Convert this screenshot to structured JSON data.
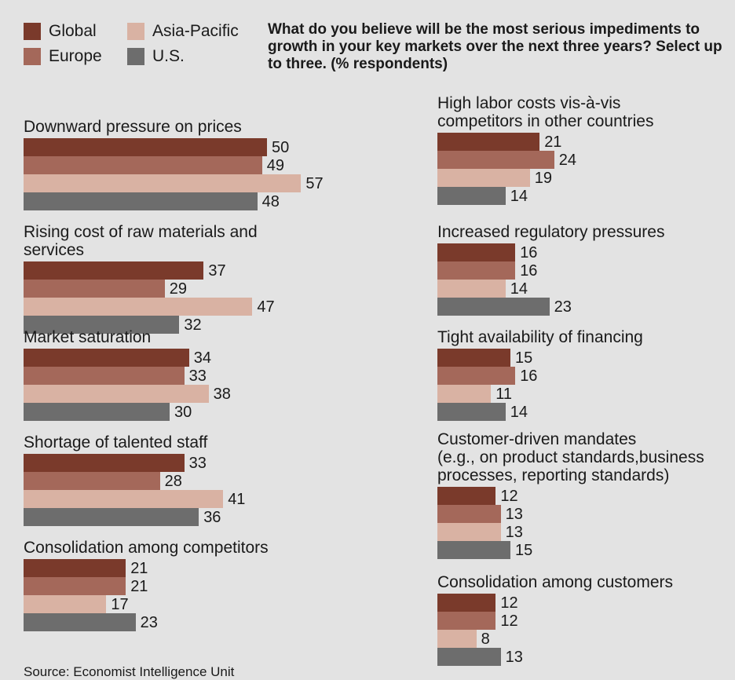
{
  "legend": [
    {
      "label": "Global",
      "color": "#7a3a2b"
    },
    {
      "label": "Asia-Pacific",
      "color": "#d9b2a3"
    },
    {
      "label": "Europe",
      "color": "#a4685a"
    },
    {
      "label": "U.S.",
      "color": "#6d6d6d"
    }
  ],
  "title": "What do you believe will be the most serious impediments to growth in your key markets over the next three years? Select up to three. (% respondents)",
  "source": "Source: Economist Intelligence Unit",
  "chart_data": {
    "type": "bar",
    "orientation": "horizontal",
    "title": "What do you believe will be the most serious impediments to growth in your key markets over the next three years? Select up to three. (% respondents)",
    "series_names": [
      "Global",
      "Europe",
      "Asia-Pacific",
      "U.S."
    ],
    "colors": [
      "#7a3a2b",
      "#a4685a",
      "#d9b2a3",
      "#6d6d6d"
    ],
    "groups": [
      {
        "label": "Downward pressure on prices",
        "values": [
          50,
          49,
          57,
          48
        ]
      },
      {
        "label": "Rising cost of raw materials and services",
        "values": [
          37,
          29,
          47,
          32
        ]
      },
      {
        "label": "Market saturation",
        "values": [
          34,
          33,
          38,
          30
        ]
      },
      {
        "label": "Shortage of talented staff",
        "values": [
          33,
          28,
          41,
          36
        ]
      },
      {
        "label": "Consolidation among competitors",
        "values": [
          21,
          21,
          17,
          23
        ]
      },
      {
        "label": "High labor costs vis-à-vis\ncompetitors in other countries",
        "values": [
          21,
          24,
          19,
          14
        ]
      },
      {
        "label": "Increased regulatory pressures",
        "values": [
          16,
          16,
          14,
          23
        ]
      },
      {
        "label": "Tight availability of financing",
        "values": [
          15,
          16,
          11,
          14
        ]
      },
      {
        "label": "Customer-driven mandates\n(e.g., on product standards,business\nprocesses, reporting standards)",
        "values": [
          12,
          13,
          13,
          15
        ]
      },
      {
        "label": "Consolidation among customers",
        "values": [
          12,
          12,
          8,
          13
        ]
      }
    ]
  }
}
